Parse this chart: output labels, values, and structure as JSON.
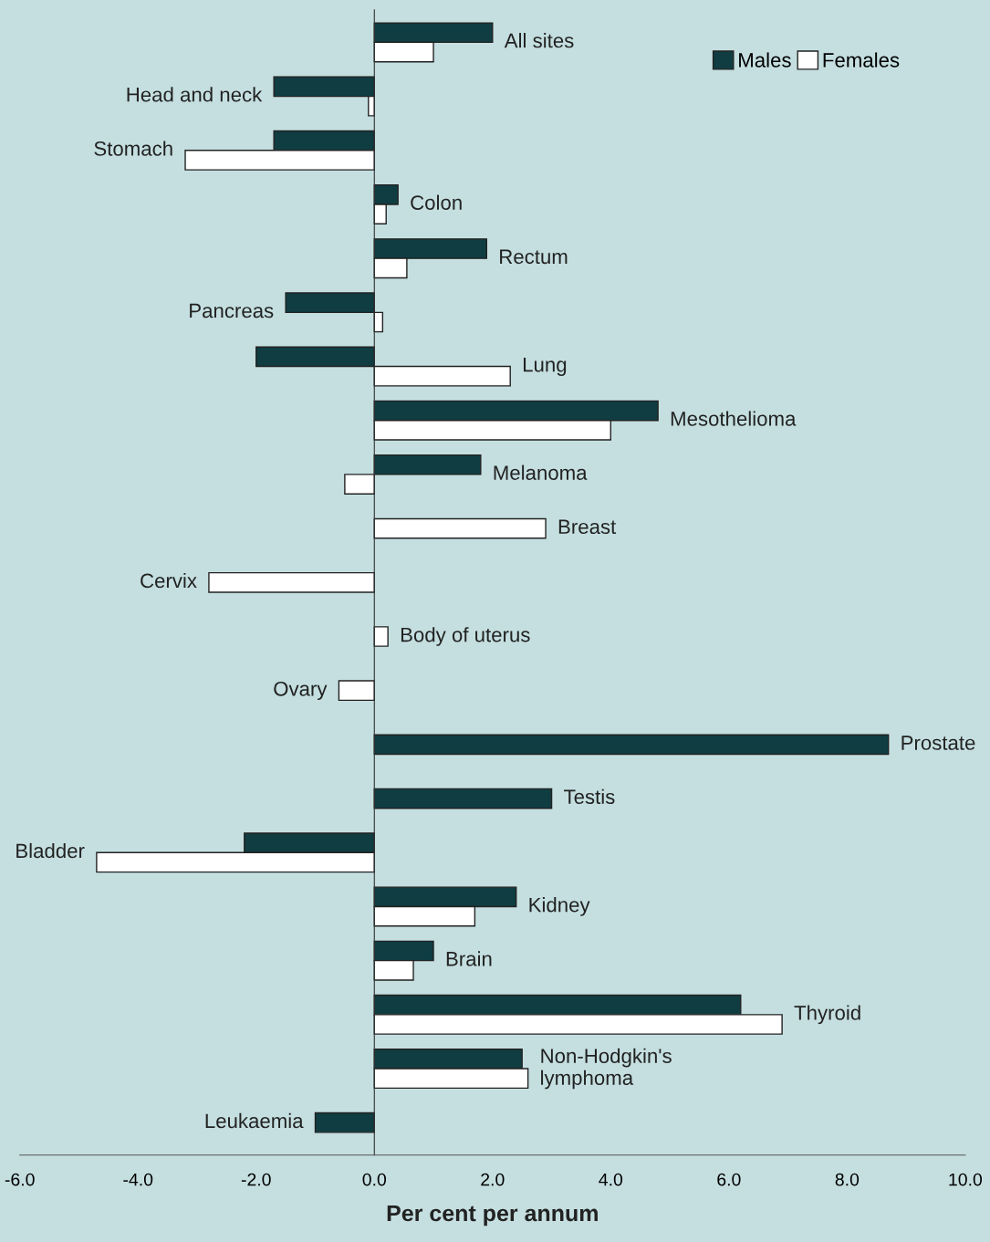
{
  "chart_data": {
    "type": "bar",
    "orientation": "horizontal",
    "xlabel": "Per cent per annum",
    "categories": [
      "All sites",
      "Head and neck",
      "Stomach",
      "Colon",
      "Rectum",
      "Pancreas",
      "Lung",
      "Mesothelioma",
      "Melanoma",
      "Breast",
      "Cervix",
      "Body of uterus",
      "Ovary",
      "Prostate",
      "Testis",
      "Bladder",
      "Kidney",
      "Brain",
      "Thyroid",
      "Non-Hodgkin's\nlymphoma",
      "Leukaemia"
    ],
    "series": [
      {
        "name": "Males",
        "color": "#0f3d42",
        "values": [
          2.0,
          -1.7,
          -1.7,
          0.4,
          1.9,
          -1.5,
          -2.0,
          4.8,
          1.8,
          null,
          null,
          null,
          null,
          8.7,
          3.0,
          -2.2,
          2.4,
          1.0,
          6.2,
          2.5,
          -1.0
        ]
      },
      {
        "name": "Females",
        "color": "#ffffff",
        "values": [
          1.0,
          -0.1,
          -3.2,
          0.2,
          0.55,
          0.14,
          2.3,
          4.0,
          -0.5,
          2.9,
          -2.8,
          0.23,
          -0.6,
          null,
          null,
          -4.7,
          1.7,
          0.66,
          6.9,
          2.6,
          null
        ]
      }
    ],
    "xlim": [
      -6,
      10
    ],
    "xticks": [
      {
        "value": -6,
        "label": "-6.0"
      },
      {
        "value": -4,
        "label": "-4.0"
      },
      {
        "value": -2,
        "label": "-2.0"
      },
      {
        "value": 0,
        "label": "0.0"
      },
      {
        "value": 2,
        "label": "2.0"
      },
      {
        "value": 4,
        "label": "4.0"
      },
      {
        "value": 6,
        "label": "6.0"
      },
      {
        "value": 8,
        "label": "8.0"
      },
      {
        "value": 10,
        "label": "10.0"
      }
    ],
    "tick_labels": "x",
    "legend": "top right"
  }
}
